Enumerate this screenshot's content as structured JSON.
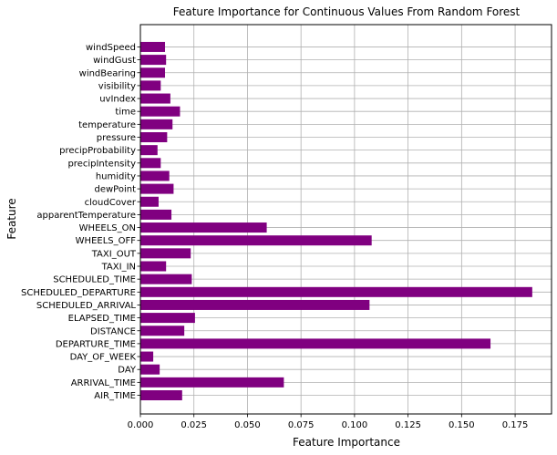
{
  "chart_data": {
    "type": "bar",
    "orientation": "horizontal",
    "title": "Feature Importance for Continuous Values From Random Forest",
    "xlabel": "Feature Importance",
    "ylabel": "Feature",
    "xlim": [
      0,
      0.192
    ],
    "xticks": [
      "0.000",
      "0.025",
      "0.050",
      "0.075",
      "0.100",
      "0.125",
      "0.150",
      "0.175"
    ],
    "grid": true,
    "bar_color": "#800080",
    "categories": [
      "AIR_TIME",
      "ARRIVAL_TIME",
      "DAY",
      "DAY_OF_WEEK",
      "DEPARTURE_TIME",
      "DISTANCE",
      "ELAPSED_TIME",
      "SCHEDULED_ARRIVAL",
      "SCHEDULED_DEPARTURE",
      "SCHEDULED_TIME",
      "TAXI_IN",
      "TAXI_OUT",
      "WHEELS_OFF",
      "WHEELS_ON",
      "apparentTemperature",
      "cloudCover",
      "dewPoint",
      "humidity",
      "precipIntensity",
      "precipProbability",
      "pressure",
      "temperature",
      "time",
      "uvIndex",
      "visibility",
      "windBearing",
      "windGust",
      "windSpeed"
    ],
    "values": [
      0.0195,
      0.067,
      0.009,
      0.006,
      0.1635,
      0.0205,
      0.0255,
      0.107,
      0.183,
      0.024,
      0.012,
      0.0235,
      0.108,
      0.059,
      0.0145,
      0.0085,
      0.0155,
      0.0135,
      0.0095,
      0.008,
      0.0125,
      0.015,
      0.0185,
      0.014,
      0.0095,
      0.0115,
      0.012,
      0.0115
    ]
  }
}
